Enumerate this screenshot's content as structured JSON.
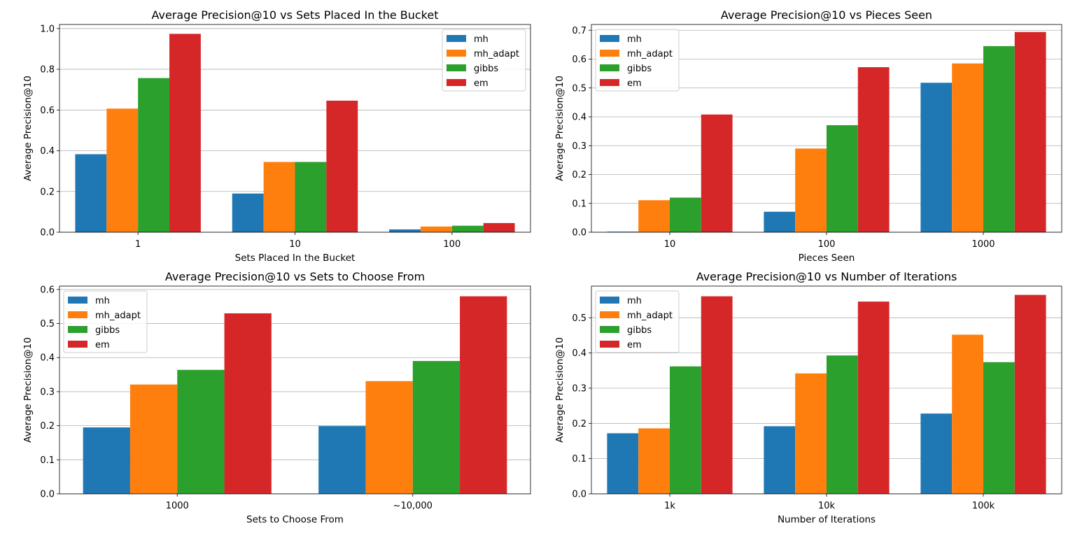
{
  "colors": {
    "mh": "#1f77b4",
    "mh_adapt": "#ff7f0e",
    "gibbs": "#2ca02c",
    "em": "#d62728",
    "grid": "#b0b0b0",
    "axis": "#000000"
  },
  "chart_data": [
    {
      "type": "bar",
      "title": "Average Precision@10 vs Sets Placed In the Bucket",
      "xlabel": "Sets Placed In the Bucket",
      "ylabel": "Average Precision@10",
      "categories": [
        "1",
        "10",
        "100"
      ],
      "ylim": [
        0,
        1.02
      ],
      "yticks": [
        0.0,
        0.2,
        0.4,
        0.6,
        0.8,
        1.0
      ],
      "ytick_labels": [
        "0.0",
        "0.2",
        "0.4",
        "0.6",
        "0.8",
        "1.0"
      ],
      "grid": true,
      "legend": "top-right",
      "series": [
        {
          "name": "mh",
          "color_key": "mh",
          "values": [
            0.383,
            0.19,
            0.014
          ]
        },
        {
          "name": "mh_adapt",
          "color_key": "mh_adapt",
          "values": [
            0.607,
            0.345,
            0.028
          ]
        },
        {
          "name": "gibbs",
          "color_key": "gibbs",
          "values": [
            0.757,
            0.345,
            0.032
          ]
        },
        {
          "name": "em",
          "color_key": "em",
          "values": [
            0.974,
            0.646,
            0.045
          ]
        }
      ]
    },
    {
      "type": "bar",
      "title": "Average Precision@10 vs Pieces Seen",
      "xlabel": "Pieces Seen",
      "ylabel": "Average Precision@10",
      "categories": [
        "10",
        "100",
        "1000"
      ],
      "ylim": [
        0,
        0.72
      ],
      "yticks": [
        0.0,
        0.1,
        0.2,
        0.3,
        0.4,
        0.5,
        0.6,
        0.7
      ],
      "ytick_labels": [
        "0.0",
        "0.1",
        "0.2",
        "0.3",
        "0.4",
        "0.5",
        "0.6",
        "0.7"
      ],
      "grid": true,
      "legend": "top-left",
      "series": [
        {
          "name": "mh",
          "color_key": "mh",
          "values": [
            0.002,
            0.071,
            0.518
          ]
        },
        {
          "name": "mh_adapt",
          "color_key": "mh_adapt",
          "values": [
            0.111,
            0.29,
            0.585
          ]
        },
        {
          "name": "gibbs",
          "color_key": "gibbs",
          "values": [
            0.12,
            0.371,
            0.645
          ]
        },
        {
          "name": "em",
          "color_key": "em",
          "values": [
            0.408,
            0.572,
            0.694
          ]
        }
      ]
    },
    {
      "type": "bar",
      "title": "Average Precision@10 vs Sets to Choose From",
      "xlabel": "Sets to Choose From",
      "ylabel": "Average Precision@10",
      "categories": [
        "1000",
        "~10,000"
      ],
      "ylim": [
        0,
        0.61
      ],
      "yticks": [
        0.0,
        0.1,
        0.2,
        0.3,
        0.4,
        0.5,
        0.6
      ],
      "ytick_labels": [
        "0.0",
        "0.1",
        "0.2",
        "0.3",
        "0.4",
        "0.5",
        "0.6"
      ],
      "grid": true,
      "legend": "top-left",
      "series": [
        {
          "name": "mh",
          "color_key": "mh",
          "values": [
            0.195,
            0.199
          ]
        },
        {
          "name": "mh_adapt",
          "color_key": "mh_adapt",
          "values": [
            0.321,
            0.331
          ]
        },
        {
          "name": "gibbs",
          "color_key": "gibbs",
          "values": [
            0.364,
            0.39
          ]
        },
        {
          "name": "em",
          "color_key": "em",
          "values": [
            0.53,
            0.58
          ]
        }
      ]
    },
    {
      "type": "bar",
      "title": "Average Precision@10 vs Number of Iterations",
      "xlabel": "Number of Iterations",
      "ylabel": "Average Precision@10",
      "categories": [
        "1k",
        "10k",
        "100k"
      ],
      "ylim": [
        0,
        0.59
      ],
      "yticks": [
        0.0,
        0.1,
        0.2,
        0.3,
        0.4,
        0.5
      ],
      "ytick_labels": [
        "0.0",
        "0.1",
        "0.2",
        "0.3",
        "0.4",
        "0.5"
      ],
      "grid": true,
      "legend": "top-left",
      "series": [
        {
          "name": "mh",
          "color_key": "mh",
          "values": [
            0.172,
            0.192,
            0.228
          ]
        },
        {
          "name": "mh_adapt",
          "color_key": "mh_adapt",
          "values": [
            0.186,
            0.342,
            0.452
          ]
        },
        {
          "name": "gibbs",
          "color_key": "gibbs",
          "values": [
            0.362,
            0.393,
            0.374
          ]
        },
        {
          "name": "em",
          "color_key": "em",
          "values": [
            0.561,
            0.546,
            0.565
          ]
        }
      ]
    }
  ]
}
